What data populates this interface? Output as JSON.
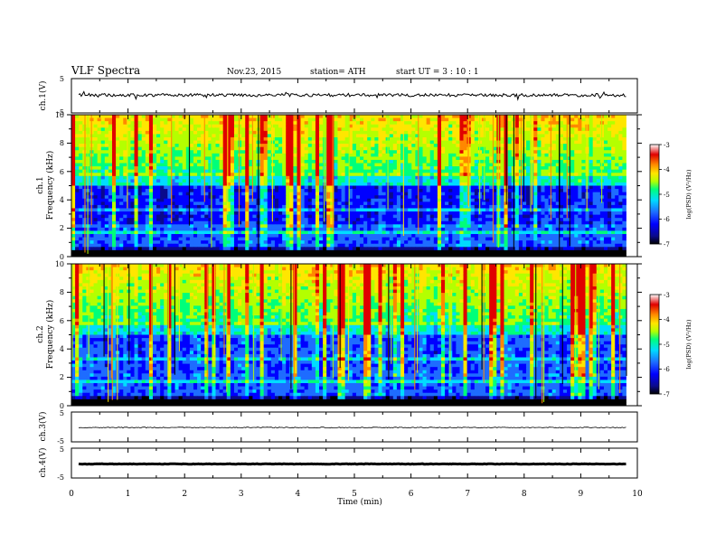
{
  "header": {
    "title": "VLF  Spectra",
    "date": "Nov.23, 2015",
    "station": "station= ATH",
    "start": "start  UT  =   3  : 10 : 1"
  },
  "colors": {
    "cmap": [
      "#000000",
      "#0a0a8c",
      "#0000ff",
      "#1e6cff",
      "#00dcff",
      "#00ff7a",
      "#b4ff00",
      "#ffe600",
      "#ff8800",
      "#e00000",
      "#ffffff"
    ],
    "trace": "#000000"
  },
  "chart_data": [
    {
      "type": "line",
      "panel": "ch1-waveform",
      "ylabel": "ch.1(V)",
      "yticks": [
        "5",
        "-5"
      ],
      "ylim": [
        -5,
        5
      ],
      "xlim": [
        0,
        10
      ],
      "level": 0.2
    },
    {
      "type": "heatmap",
      "panel": "ch1-spectrogram",
      "ylabel": [
        "ch.1",
        "Frequency  (kHz)"
      ],
      "yticks": [
        "0",
        "2",
        "4",
        "6",
        "8",
        "10"
      ],
      "ylim": [
        0,
        10
      ],
      "xlim": [
        0,
        9.8
      ],
      "colorbar": {
        "label": "log(PSD) (V²/Hz)",
        "ticks": [
          "-3",
          "-4",
          "-5",
          "-6",
          "-7"
        ],
        "range": [
          -7,
          -3
        ]
      }
    },
    {
      "type": "heatmap",
      "panel": "ch2-spectrogram",
      "ylabel": [
        "ch.2",
        "Frequency  (kHz)"
      ],
      "yticks": [
        "0",
        "2",
        "4",
        "6",
        "8",
        "10"
      ],
      "ylim": [
        0,
        10
      ],
      "xlim": [
        0,
        9.8
      ],
      "colorbar": {
        "label": "log(PSD) (V²/Hz)",
        "ticks": [
          "-3",
          "-4",
          "-5",
          "-6",
          "-7"
        ],
        "range": [
          -7,
          -3
        ]
      }
    },
    {
      "type": "line",
      "panel": "ch3-waveform",
      "ylabel": "ch.3(V)",
      "yticks": [
        "5",
        "-5"
      ],
      "ylim": [
        -5,
        5
      ],
      "xlim": [
        0,
        10
      ],
      "level": -0.2
    },
    {
      "type": "line",
      "panel": "ch4-waveform",
      "ylabel": "ch.4(V)",
      "yticks": [
        "5",
        "-5"
      ],
      "ylim": [
        -5,
        5
      ],
      "xlim": [
        0,
        10
      ],
      "level": -0.3
    }
  ],
  "xaxis": {
    "label": "Time  (min)",
    "ticks": [
      "0",
      "1",
      "2",
      "3",
      "4",
      "5",
      "6",
      "7",
      "8",
      "9",
      "10"
    ]
  }
}
